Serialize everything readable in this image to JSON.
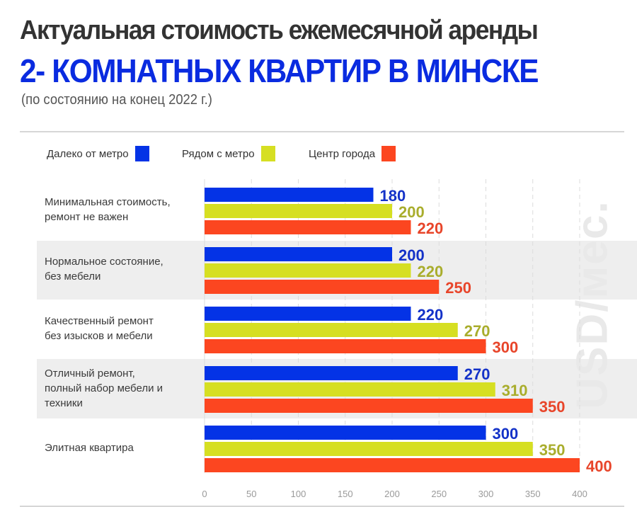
{
  "header": {
    "title_line1": "Актуальная стоимость ежемесячной аренды",
    "title_line2": "2- КОМНАТНЫХ КВАРТИР В МИНСКЕ",
    "subtitle": "(по состоянию на конец 2022 г.)"
  },
  "watermark": "USD/мес.",
  "colors": {
    "title_dark": "#333333",
    "title_blue": "#0a2be0",
    "band": "#eeeeee"
  },
  "chart_data": {
    "type": "bar",
    "orientation": "horizontal",
    "title": "Актуальная стоимость ежемесячной аренды 2- КОМНАТНЫХ КВАРТИР В МИНСКЕ",
    "subtitle": "(по состоянию на конец 2022 г.)",
    "xlabel": "",
    "ylabel": "USD/мес.",
    "xlim": [
      0,
      400
    ],
    "xticks": [
      0,
      50,
      100,
      150,
      200,
      250,
      300,
      350,
      400
    ],
    "xtick_labels": [
      "0",
      "50",
      "100",
      "150",
      "200",
      "250",
      "300",
      "350",
      "400"
    ],
    "grid": true,
    "legend_position": "top-left",
    "categories": [
      [
        "Минимальная стоимость,",
        "ремонт не важен"
      ],
      [
        "Нормальное состояние,",
        "без мебели"
      ],
      [
        "Качественный ремонт",
        "без изысков и мебели"
      ],
      [
        "Отличный ремонт,",
        "полный набор мебели и",
        "техники"
      ],
      [
        "Элитная квартира"
      ]
    ],
    "series": [
      {
        "name": "Далеко от метро",
        "color": "#0433e6",
        "label_color": "#1432c8",
        "values": [
          180,
          200,
          220,
          270,
          300
        ]
      },
      {
        "name": "Рядом с метро",
        "color": "#d6df22",
        "label_color": "#a9ad2c",
        "values": [
          200,
          220,
          270,
          310,
          350
        ]
      },
      {
        "name": "Центр города",
        "color": "#fc4620",
        "label_color": "#e8452a",
        "values": [
          220,
          250,
          300,
          350,
          400
        ]
      }
    ]
  }
}
